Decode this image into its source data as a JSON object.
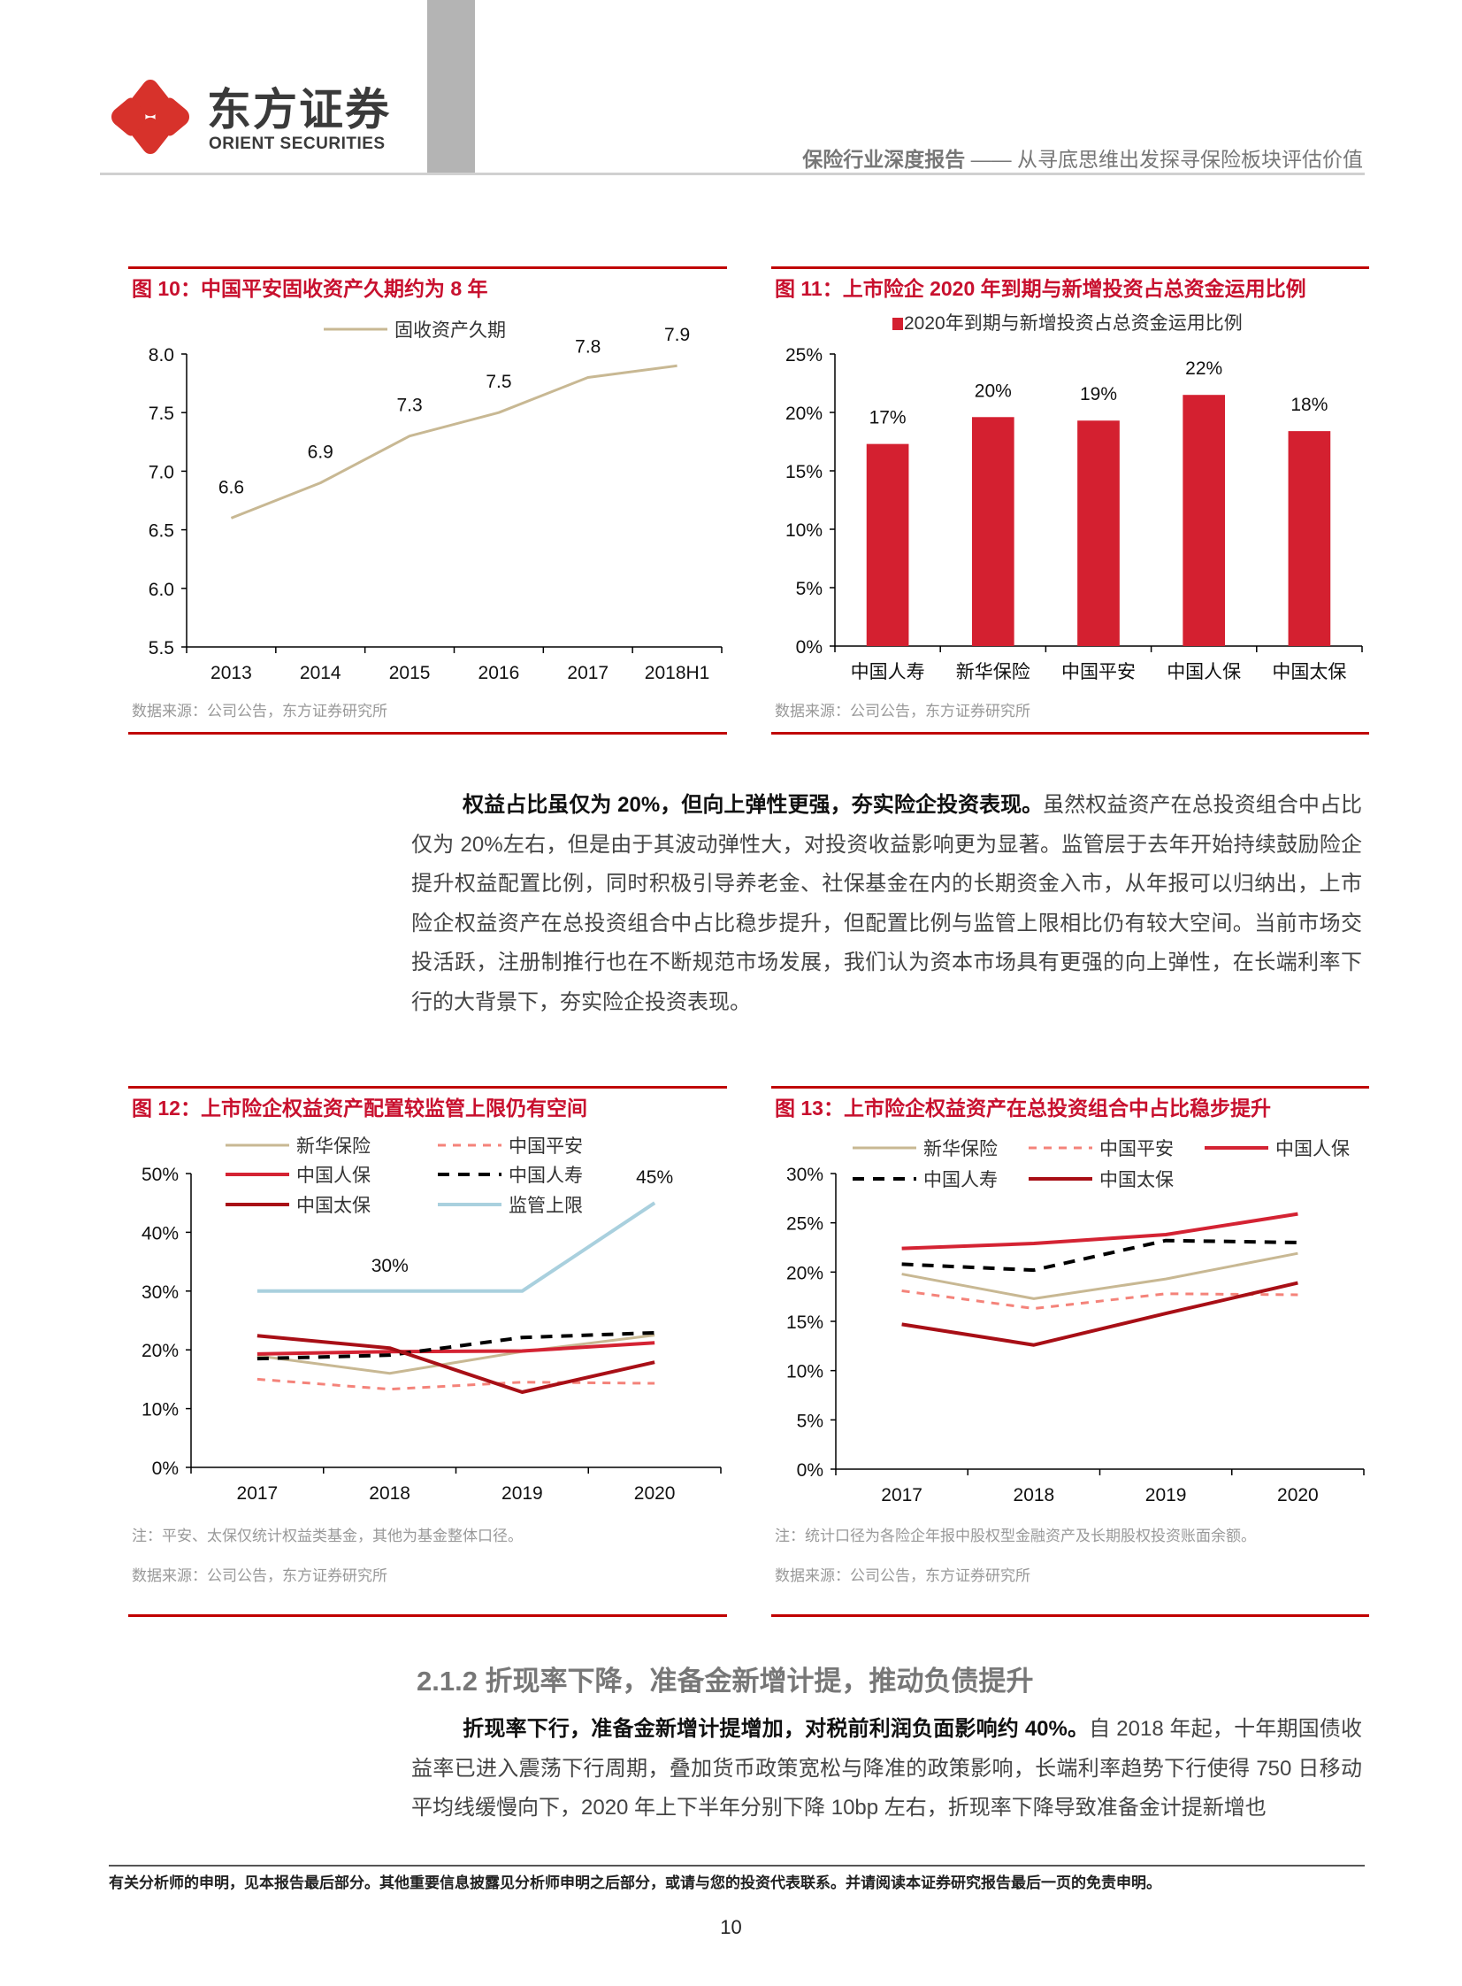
{
  "header": {
    "logo_cn": "东方证券",
    "logo_en": "ORIENT SECURITIES",
    "logo_icon": "orient-securities-logo-icon",
    "report_type": "保险行业深度报告",
    "separator": " —— ",
    "report_subtitle": "从寻底思维出发探寻保险板块评估价值",
    "brand_color": "#d7322b"
  },
  "figures": {
    "fig10": {
      "title": "图 10：中国平安固收资产久期约为 8 年",
      "source": "数据来源：公司公告，东方证券研究所"
    },
    "fig11": {
      "title": "图 11：上市险企 2020 年到期与新增投资占总资金运用比例",
      "source": "数据来源：公司公告，东方证券研究所"
    },
    "fig12": {
      "title": "图 12：上市险企权益资产配置较监管上限仍有空间",
      "note": "注：平安、太保仅统计权益类基金，其他为基金整体口径。",
      "source": "数据来源：公司公告，东方证券研究所"
    },
    "fig13": {
      "title": "图 13：上市险企权益资产在总投资组合中占比稳步提升",
      "note": "注：统计口径为各险企年报中股权型金融资产及长期股权投资账面余额。",
      "source": "数据来源：公司公告，东方证券研究所"
    }
  },
  "chart_data": [
    {
      "id": "fig10",
      "type": "line",
      "title": "图 10：中国平安固收资产久期约为 8 年",
      "categories": [
        "2013",
        "2014",
        "2015",
        "2016",
        "2017",
        "2018H1"
      ],
      "series": [
        {
          "name": "固收资产久期",
          "values": [
            6.6,
            6.9,
            7.3,
            7.5,
            7.8,
            7.9
          ],
          "color": "#c8b893",
          "dash": false
        }
      ],
      "data_labels": [
        "6.6",
        "6.9",
        "7.3",
        "7.5",
        "7.8",
        "7.9"
      ],
      "ylim": [
        5.5,
        8.0
      ],
      "yticks": [
        "8.0",
        "7.5",
        "7.0",
        "6.5",
        "6.0",
        "5.5"
      ],
      "xlabel": "",
      "ylabel": "",
      "grid": false,
      "legend_position": "top"
    },
    {
      "id": "fig11",
      "type": "bar",
      "title": "图 11：上市险企 2020 年到期与新增投资占总资金运用比例",
      "categories": [
        "中国人寿",
        "新华保险",
        "中国平安",
        "中国人保",
        "中国太保"
      ],
      "series": [
        {
          "name": "2020年到期与新增投资占总资金运用比例",
          "values": [
            17.3,
            19.6,
            19.3,
            21.5,
            18.4
          ],
          "color": "#d42030"
        }
      ],
      "data_labels": [
        "17%",
        "20%",
        "19%",
        "22%",
        "18%"
      ],
      "ylim": [
        0,
        25
      ],
      "yticks": [
        "25%",
        "20%",
        "15%",
        "10%",
        "5%",
        "0%"
      ],
      "xlabel": "",
      "ylabel": "",
      "grid": false,
      "legend_position": "top"
    },
    {
      "id": "fig12",
      "type": "line",
      "title": "图 12：上市险企权益资产配置较监管上限仍有空间",
      "categories": [
        "2017",
        "2018",
        "2019",
        "2020"
      ],
      "series": [
        {
          "name": "新华保险",
          "values": [
            19.0,
            16.0,
            19.7,
            22.5
          ],
          "color": "#c8b893",
          "dash": false,
          "width": 3
        },
        {
          "name": "中国平安",
          "values": [
            15.0,
            13.3,
            14.5,
            14.3
          ],
          "color": "#f4837a",
          "dash": true,
          "width": 3
        },
        {
          "name": "中国人保",
          "values": [
            19.3,
            19.7,
            19.8,
            21.2
          ],
          "color": "#d42333",
          "dash": false,
          "width": 4
        },
        {
          "name": "中国人寿",
          "values": [
            18.5,
            19.1,
            22.1,
            22.9
          ],
          "color": "#000000",
          "dash": true,
          "width": 4
        },
        {
          "name": "中国太保",
          "values": [
            22.4,
            20.3,
            12.8,
            17.9
          ],
          "color": "#a80f16",
          "dash": false,
          "width": 4
        },
        {
          "name": "监管上限",
          "values": [
            30,
            30,
            30,
            45
          ],
          "color": "#a9d0de",
          "dash": false,
          "width": 4
        }
      ],
      "annotations": [
        "30%",
        "45%"
      ],
      "ylim": [
        0,
        50
      ],
      "yticks": [
        "50%",
        "40%",
        "30%",
        "20%",
        "10%",
        "0%"
      ],
      "xlabel": "",
      "ylabel": "",
      "grid": false,
      "legend_position": "top"
    },
    {
      "id": "fig13",
      "type": "line",
      "title": "图 13：上市险企权益资产在总投资组合中占比稳步提升",
      "categories": [
        "2017",
        "2018",
        "2019",
        "2020"
      ],
      "series": [
        {
          "name": "新华保险",
          "values": [
            19.8,
            17.3,
            19.3,
            21.9
          ],
          "color": "#c8b893",
          "dash": false,
          "width": 3
        },
        {
          "name": "中国平安",
          "values": [
            18.1,
            16.3,
            17.8,
            17.7
          ],
          "color": "#f4837a",
          "dash": true,
          "width": 3
        },
        {
          "name": "中国人保",
          "values": [
            22.4,
            22.9,
            23.8,
            25.9
          ],
          "color": "#d42333",
          "dash": false,
          "width": 4
        },
        {
          "name": "中国人寿",
          "values": [
            20.8,
            20.2,
            23.2,
            23.0
          ],
          "color": "#000000",
          "dash": true,
          "width": 4
        },
        {
          "name": "中国太保",
          "values": [
            14.7,
            12.6,
            15.8,
            18.9
          ],
          "color": "#a80f16",
          "dash": false,
          "width": 4
        }
      ],
      "ylim": [
        0,
        30
      ],
      "yticks": [
        "30%",
        "25%",
        "20%",
        "15%",
        "10%",
        "5%",
        "0%"
      ],
      "xlabel": "",
      "ylabel": "",
      "grid": false,
      "legend_position": "top"
    }
  ],
  "body": {
    "para1_bold": "权益占比虽仅为 20%，但向上弹性更强，夯实险企投资表现。",
    "para1_text": "虽然权益资产在总投资组合中占比仅为 20%左右，但是由于其波动弹性大，对投资收益影响更为显著。监管层于去年开始持续鼓励险企提升权益配置比例，同时积极引导养老金、社保基金在内的长期资金入市，从年报可以归纳出，上市险企权益资产在总投资组合中占比稳步提升，但配置比例与监管上限相比仍有较大空间。当前市场交投活跃，注册制推行也在不断规范市场发展，我们认为资本市场具有更强的向上弹性，在长端利率下行的大背景下，夯实险企投资表现。",
    "section_heading": "2.1.2 折现率下降，准备金新增计提，推动负债提升",
    "para2_bold": "折现率下行，准备金新增计提增加，对税前利润负面影响约 40%。",
    "para2_text": "自 2018 年起，十年期国债收益率已进入震荡下行周期，叠加货币政策宽松与降准的政策影响，长端利率趋势下行使得 750 日移动平均线缓慢向下，2020 年上下半年分别下降 10bp 左右，折现率下降导致准备金计提新增也"
  },
  "footer": {
    "disclaimer": "有关分析师的申明，见本报告最后部分。其他重要信息披露见分析师申明之后部分，或请与您的投资代表联系。并请阅读本证券研究报告最后一页的免责申明。",
    "page_number": "10"
  }
}
